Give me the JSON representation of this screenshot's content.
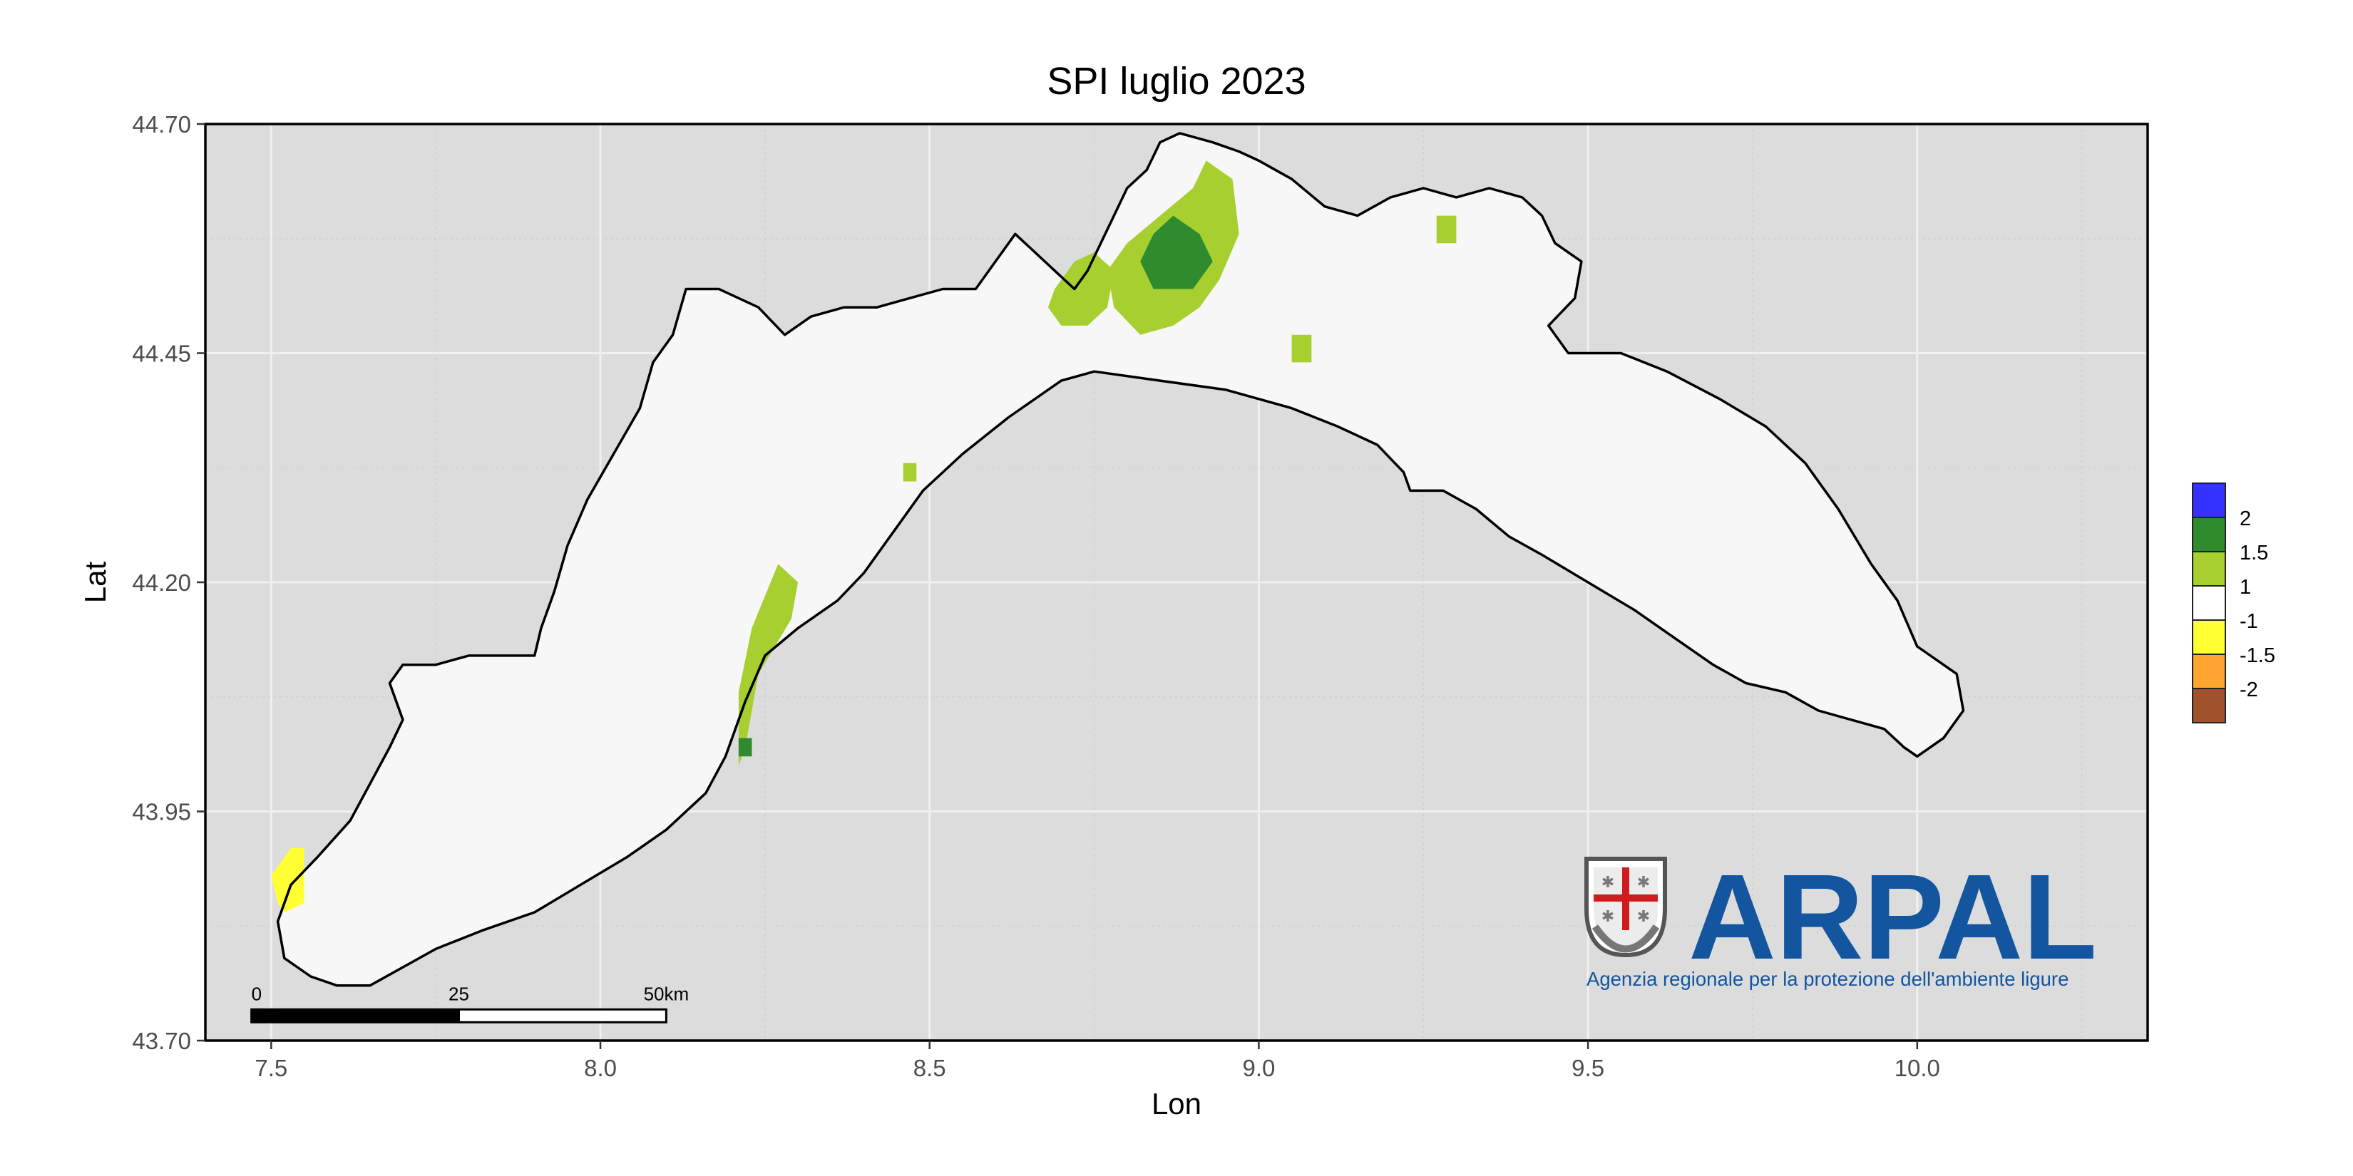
{
  "title": "SPI luglio 2023",
  "x_axis": {
    "label": "Lon",
    "range": [
      7.4,
      10.35
    ],
    "ticks": [
      7.5,
      8.0,
      8.5,
      9.0,
      9.5,
      10.0
    ],
    "tick_labels": [
      "7.5",
      "8.0",
      "8.5",
      "9.0",
      "9.5",
      "10.0"
    ]
  },
  "y_axis": {
    "label": "Lat",
    "range": [
      43.7,
      44.7
    ],
    "ticks": [
      43.7,
      43.95,
      44.2,
      44.45,
      44.7
    ],
    "tick_labels": [
      "43.70",
      "43.95",
      "44.20",
      "44.45",
      "44.70"
    ]
  },
  "grid": true,
  "legend": {
    "placement": "right",
    "swatches": [
      {
        "color": "#3333ff"
      },
      {
        "color": "#2e8b2e"
      },
      {
        "color": "#a6cf2f"
      },
      {
        "color": "#ffffff"
      },
      {
        "color": "#ffff33"
      },
      {
        "color": "#ffa530"
      },
      {
        "color": "#a0522d"
      }
    ],
    "labels": [
      "2",
      "1.5",
      "1",
      "-1",
      "-1.5",
      "-2"
    ]
  },
  "scalebar": {
    "labels": [
      "0",
      "25",
      "50km"
    ],
    "lon_start": 7.47,
    "lon_end": 8.1,
    "lat": 43.727
  },
  "logo": {
    "text": "ARPAL",
    "subtitle": "Agenzia regionale per la protezione dell'ambiente ligure",
    "color": "#1455a0"
  },
  "colors": {
    "panel_bg": "#dcdcdc",
    "land": "#f7f7f7",
    "grid_major": "#f0f0f0",
    "grid_minor": "#cfcfcf"
  },
  "chart_data": {
    "type": "heatmap",
    "title": "SPI luglio 2023",
    "xlabel": "Lon",
    "ylabel": "Lat",
    "xlim": [
      7.4,
      10.35
    ],
    "ylim": [
      43.7,
      44.7
    ],
    "region_outline": [
      [
        7.52,
        43.79
      ],
      [
        7.56,
        43.77
      ],
      [
        7.6,
        43.76
      ],
      [
        7.65,
        43.76
      ],
      [
        7.7,
        43.78
      ],
      [
        7.75,
        43.8
      ],
      [
        7.82,
        43.82
      ],
      [
        7.9,
        43.84
      ],
      [
        7.97,
        43.87
      ],
      [
        8.04,
        43.9
      ],
      [
        8.1,
        43.93
      ],
      [
        8.16,
        43.97
      ],
      [
        8.19,
        44.01
      ],
      [
        8.22,
        44.07
      ],
      [
        8.25,
        44.12
      ],
      [
        8.3,
        44.15
      ],
      [
        8.36,
        44.18
      ],
      [
        8.4,
        44.21
      ],
      [
        8.45,
        44.26
      ],
      [
        8.49,
        44.3
      ],
      [
        8.55,
        44.34
      ],
      [
        8.62,
        44.38
      ],
      [
        8.7,
        44.42
      ],
      [
        8.75,
        44.43
      ],
      [
        8.85,
        44.42
      ],
      [
        8.95,
        44.41
      ],
      [
        9.05,
        44.39
      ],
      [
        9.12,
        44.37
      ],
      [
        9.18,
        44.35
      ],
      [
        9.22,
        44.32
      ],
      [
        9.23,
        44.3
      ],
      [
        9.28,
        44.3
      ],
      [
        9.33,
        44.28
      ],
      [
        9.38,
        44.25
      ],
      [
        9.43,
        44.23
      ],
      [
        9.5,
        44.2
      ],
      [
        9.57,
        44.17
      ],
      [
        9.63,
        44.14
      ],
      [
        9.69,
        44.11
      ],
      [
        9.74,
        44.09
      ],
      [
        9.8,
        44.08
      ],
      [
        9.85,
        44.06
      ],
      [
        9.9,
        44.05
      ],
      [
        9.95,
        44.04
      ],
      [
        9.98,
        44.02
      ],
      [
        10.0,
        44.01
      ],
      [
        10.04,
        44.03
      ],
      [
        10.07,
        44.06
      ],
      [
        10.06,
        44.1
      ],
      [
        10.0,
        44.13
      ],
      [
        9.97,
        44.18
      ],
      [
        9.93,
        44.22
      ],
      [
        9.88,
        44.28
      ],
      [
        9.83,
        44.33
      ],
      [
        9.77,
        44.37
      ],
      [
        9.7,
        44.4
      ],
      [
        9.62,
        44.43
      ],
      [
        9.55,
        44.45
      ],
      [
        9.47,
        44.45
      ],
      [
        9.44,
        44.48
      ],
      [
        9.48,
        44.51
      ],
      [
        9.49,
        44.55
      ],
      [
        9.45,
        44.57
      ],
      [
        9.43,
        44.6
      ],
      [
        9.4,
        44.62
      ],
      [
        9.35,
        44.63
      ],
      [
        9.3,
        44.62
      ],
      [
        9.25,
        44.63
      ],
      [
        9.2,
        44.62
      ],
      [
        9.15,
        44.6
      ],
      [
        9.1,
        44.61
      ],
      [
        9.05,
        44.64
      ],
      [
        9.0,
        44.66
      ],
      [
        8.97,
        44.67
      ],
      [
        8.93,
        44.68
      ],
      [
        8.88,
        44.69
      ],
      [
        8.85,
        44.68
      ],
      [
        8.83,
        44.65
      ],
      [
        8.8,
        44.63
      ],
      [
        8.78,
        44.6
      ],
      [
        8.76,
        44.57
      ],
      [
        8.74,
        44.54
      ],
      [
        8.72,
        44.52
      ],
      [
        8.69,
        44.54
      ],
      [
        8.66,
        44.56
      ],
      [
        8.63,
        44.58
      ],
      [
        8.6,
        44.55
      ],
      [
        8.57,
        44.52
      ],
      [
        8.52,
        44.52
      ],
      [
        8.47,
        44.51
      ],
      [
        8.42,
        44.5
      ],
      [
        8.37,
        44.5
      ],
      [
        8.32,
        44.49
      ],
      [
        8.28,
        44.47
      ],
      [
        8.24,
        44.5
      ],
      [
        8.18,
        44.52
      ],
      [
        8.13,
        44.52
      ],
      [
        8.11,
        44.47
      ],
      [
        8.08,
        44.44
      ],
      [
        8.06,
        44.39
      ],
      [
        8.02,
        44.34
      ],
      [
        7.98,
        44.29
      ],
      [
        7.95,
        44.24
      ],
      [
        7.93,
        44.19
      ],
      [
        7.91,
        44.15
      ],
      [
        7.9,
        44.12
      ],
      [
        7.86,
        44.12
      ],
      [
        7.8,
        44.12
      ],
      [
        7.75,
        44.11
      ],
      [
        7.7,
        44.11
      ],
      [
        7.68,
        44.09
      ],
      [
        7.7,
        44.05
      ],
      [
        7.68,
        44.02
      ],
      [
        7.65,
        43.98
      ],
      [
        7.62,
        43.94
      ],
      [
        7.57,
        43.9
      ],
      [
        7.53,
        43.87
      ],
      [
        7.51,
        43.83
      ],
      [
        7.52,
        43.79
      ]
    ],
    "cells": [
      {
        "class": "1 to 1.5",
        "color": "#a6cf2f",
        "polygon": [
          [
            8.82,
            44.47
          ],
          [
            8.78,
            44.5
          ],
          [
            8.77,
            44.54
          ],
          [
            8.8,
            44.57
          ],
          [
            8.85,
            44.6
          ],
          [
            8.9,
            44.63
          ],
          [
            8.92,
            44.66
          ],
          [
            8.96,
            44.64
          ],
          [
            8.97,
            44.58
          ],
          [
            8.94,
            44.53
          ],
          [
            8.91,
            44.5
          ],
          [
            8.87,
            44.48
          ]
        ]
      },
      {
        "class": "1 to 1.5",
        "color": "#a6cf2f",
        "polygon": [
          [
            8.7,
            44.48
          ],
          [
            8.68,
            44.5
          ],
          [
            8.69,
            44.52
          ],
          [
            8.72,
            44.55
          ],
          [
            8.75,
            44.56
          ],
          [
            8.78,
            44.54
          ],
          [
            8.77,
            44.5
          ],
          [
            8.74,
            44.48
          ]
        ]
      },
      {
        "class": "1 to 1.5",
        "color": "#a6cf2f",
        "polygon": [
          [
            8.21,
            44.0
          ],
          [
            8.21,
            44.08
          ],
          [
            8.23,
            44.15
          ],
          [
            8.27,
            44.22
          ],
          [
            8.3,
            44.2
          ],
          [
            8.29,
            44.16
          ],
          [
            8.24,
            44.1
          ],
          [
            8.22,
            44.02
          ]
        ]
      },
      {
        "class": "1 to 1.5",
        "color": "#a6cf2f",
        "polygon": [
          [
            9.05,
            44.44
          ],
          [
            9.05,
            44.47
          ],
          [
            9.08,
            44.47
          ],
          [
            9.08,
            44.44
          ]
        ]
      },
      {
        "class": "1 to 1.5",
        "color": "#a6cf2f",
        "polygon": [
          [
            9.27,
            44.57
          ],
          [
            9.27,
            44.6
          ],
          [
            9.3,
            44.6
          ],
          [
            9.3,
            44.57
          ]
        ]
      },
      {
        "class": "1 to 1.5",
        "color": "#a6cf2f",
        "polygon": [
          [
            8.46,
            44.31
          ],
          [
            8.46,
            44.33
          ],
          [
            8.48,
            44.33
          ],
          [
            8.48,
            44.31
          ]
        ]
      },
      {
        "class": "1.5 to 2",
        "color": "#2e8b2e",
        "polygon": [
          [
            8.84,
            44.52
          ],
          [
            8.82,
            44.55
          ],
          [
            8.84,
            44.58
          ],
          [
            8.87,
            44.6
          ],
          [
            8.91,
            44.58
          ],
          [
            8.93,
            44.55
          ],
          [
            8.9,
            44.52
          ]
        ]
      },
      {
        "class": "1.5 to 2",
        "color": "#2e8b2e",
        "polygon": [
          [
            8.21,
            44.01
          ],
          [
            8.21,
            44.03
          ],
          [
            8.23,
            44.03
          ],
          [
            8.23,
            44.01
          ]
        ]
      },
      {
        "class": "-1 to -1.5",
        "color": "#ffff33",
        "polygon": [
          [
            7.51,
            43.85
          ],
          [
            7.5,
            43.88
          ],
          [
            7.53,
            43.91
          ],
          [
            7.55,
            43.91
          ],
          [
            7.55,
            43.85
          ],
          [
            7.52,
            43.84
          ]
        ]
      }
    ],
    "legend": {
      "placement": "right",
      "breaks": [
        "2",
        "1.5",
        "1",
        "-1",
        "-1.5",
        "-2"
      ],
      "colors": [
        "#3333ff",
        "#2e8b2e",
        "#a6cf2f",
        "#ffffff",
        "#ffff33",
        "#ffa530",
        "#a0522d"
      ]
    }
  }
}
